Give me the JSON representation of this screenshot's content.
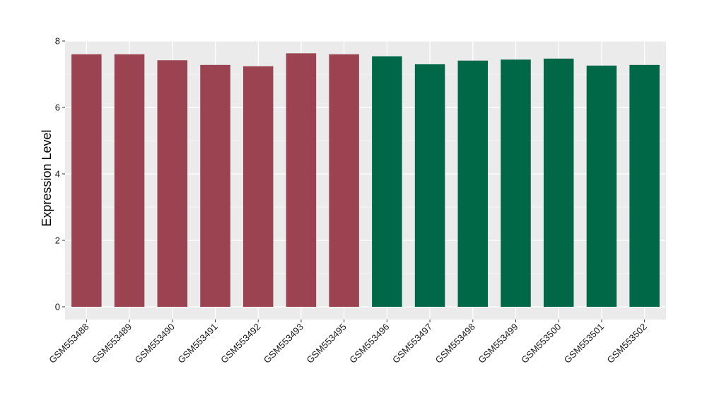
{
  "chart_data": {
    "type": "bar",
    "title": "",
    "xlabel": "",
    "ylabel": "Expression Level",
    "ylim": [
      0,
      8
    ],
    "yticks": [
      0,
      2,
      4,
      6,
      8
    ],
    "grid": true,
    "legend": "none",
    "panel_color": "#ebebeb",
    "grid_color": "#ffffff",
    "categories": [
      "GSM553488",
      "GSM553489",
      "GSM553490",
      "GSM553491",
      "GSM553492",
      "GSM553493",
      "GSM553495",
      "GSM553496",
      "GSM553497",
      "GSM553498",
      "GSM553499",
      "GSM553500",
      "GSM553501",
      "GSM553502"
    ],
    "values": [
      7.6,
      7.6,
      7.42,
      7.28,
      7.24,
      7.63,
      7.6,
      7.54,
      7.3,
      7.41,
      7.44,
      7.47,
      7.26,
      7.28
    ],
    "groups": [
      0,
      0,
      0,
      0,
      0,
      0,
      0,
      1,
      1,
      1,
      1,
      1,
      1,
      1
    ],
    "group_colors": [
      "#9b4351",
      "#006846"
    ]
  }
}
